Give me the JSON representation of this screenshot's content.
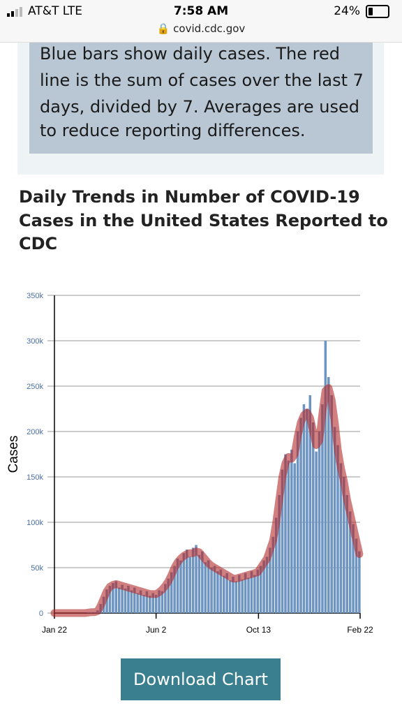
{
  "status": {
    "carrier": "AT&T  LTE",
    "time": "7:58 AM",
    "battery": "24%",
    "url": "covid.cdc.gov"
  },
  "info": {
    "lines": [
      "Blue bars show daily cases. The red",
      "line is the sum of cases over the last 7",
      "days, divided by 7. Averages are used",
      "to reduce reporting differences."
    ]
  },
  "title_lines": [
    "Daily Trends in Number of COVID-19",
    "Cases in the United States Reported to",
    "CDC"
  ],
  "button": "Download Chart",
  "chart_data": {
    "type": "bar",
    "ylabel": "Cases",
    "x": [
      0,
      4,
      8,
      12,
      16,
      20,
      24,
      28,
      32,
      36,
      40,
      44,
      48,
      52,
      56,
      60,
      64,
      68,
      72,
      76,
      80,
      84,
      88,
      92,
      96,
      100,
      104,
      108,
      112,
      116,
      120,
      124,
      128,
      132,
      136,
      140,
      144,
      148,
      152,
      156,
      160,
      164,
      168,
      172,
      176,
      180,
      184,
      188,
      192,
      196,
      200,
      204,
      208,
      212,
      216,
      220,
      224,
      228,
      232,
      236,
      240,
      244,
      248,
      252,
      256,
      260,
      264,
      268,
      272,
      276,
      280,
      284,
      288,
      292,
      296,
      300,
      304,
      308,
      312,
      316,
      320,
      324,
      328,
      332,
      336,
      340,
      344,
      348,
      352,
      356,
      360,
      364,
      368,
      372,
      376,
      380,
      384,
      388,
      392,
      396
    ],
    "series": [
      {
        "type": "bar",
        "color": "#6e95c2",
        "values": [
          0,
          0,
          0,
          0,
          0,
          0,
          0,
          0,
          0,
          0,
          0,
          1000,
          1000,
          1000,
          3000,
          10000,
          18000,
          26000,
          30000,
          33000,
          35000,
          28000,
          31000,
          27000,
          30000,
          25000,
          28000,
          22000,
          25000,
          20000,
          24000,
          19000,
          22000,
          20000,
          25000,
          24000,
          32000,
          38000,
          45000,
          52000,
          60000,
          58000,
          66000,
          70000,
          62000,
          72000,
          75000,
          64000,
          68000,
          56000,
          58000,
          50000,
          52000,
          46000,
          48000,
          41000,
          44000,
          36000,
          40000,
          35000,
          42000,
          37000,
          44000,
          39000,
          46000,
          42000,
          48000,
          52000,
          58000,
          62000,
          72000,
          84000,
          105000,
          130000,
          158000,
          175000,
          168000,
          180000,
          165000,
          200000,
          215000,
          230000,
          225000,
          240000,
          210000,
          178000,
          200000,
          230000,
          300000,
          260000,
          240000,
          205000,
          185000,
          165000,
          150000,
          130000,
          112000,
          98000,
          82000,
          68000
        ]
      },
      {
        "type": "line",
        "color": "#b22a2a",
        "values": [
          0,
          0,
          0,
          0,
          0,
          0,
          0,
          0,
          0,
          0,
          0,
          500,
          1000,
          1000,
          2000,
          8000,
          16000,
          24000,
          29000,
          31000,
          32000,
          31000,
          30000,
          29000,
          28000,
          27000,
          26000,
          25000,
          24000,
          23000,
          22000,
          21000,
          21000,
          21000,
          23000,
          26000,
          30000,
          35000,
          42000,
          50000,
          56000,
          60000,
          63000,
          65000,
          66000,
          66000,
          68000,
          67000,
          63000,
          59000,
          55000,
          52000,
          50000,
          48000,
          46000,
          44000,
          42000,
          40000,
          38000,
          38000,
          39000,
          40000,
          41000,
          42000,
          43000,
          44000,
          45000,
          50000,
          55000,
          60000,
          70000,
          80000,
          100000,
          125000,
          150000,
          165000,
          172000,
          170000,
          175000,
          195000,
          210000,
          218000,
          221000,
          215000,
          200000,
          185000,
          190000,
          220000,
          245000,
          248000,
          235000,
          210000,
          180000,
          160000,
          145000,
          125000,
          110000,
          95000,
          80000,
          65000
        ]
      }
    ],
    "xlim": [
      0,
      397
    ],
    "xticks": [
      {
        "value": 0,
        "label": "Jan 22"
      },
      {
        "value": 132,
        "label": "Jun 2"
      },
      {
        "value": 265,
        "label": "Oct 13"
      },
      {
        "value": 397,
        "label": "Feb 22"
      }
    ],
    "ylim": [
      0,
      350000
    ],
    "yticks": [
      0,
      {
        "value": 50000,
        "label": "50k"
      },
      {
        "value": 100000,
        "label": "100k"
      },
      {
        "value": 150000,
        "label": "150k"
      },
      {
        "value": 200000,
        "label": "200k"
      },
      {
        "value": 250000,
        "label": "250k"
      },
      {
        "value": 300000,
        "label": "300k"
      },
      {
        "value": 350000,
        "label": "350k"
      }
    ],
    "grid": true
  }
}
